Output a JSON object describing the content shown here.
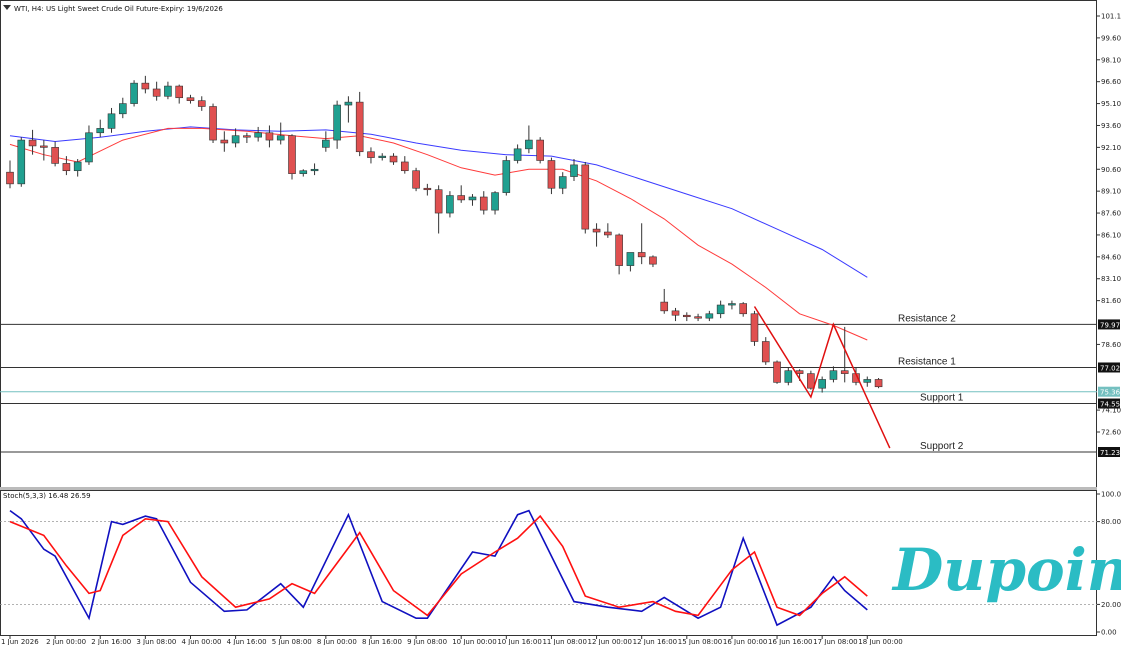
{
  "header": {
    "title": "WTI, H4:  US Light Sweet Crude Oil Future-Expiry: 19/6/2026"
  },
  "logo": {
    "text": "Dupoin",
    "color": "#2bbcc4"
  },
  "colors": {
    "bull": "#20a090",
    "bear": "#e05050",
    "ma_fast": "#ff3b3b",
    "ma_slow": "#3b3bff",
    "stoch_main": "#1010c0",
    "stoch_signal": "#ff1010",
    "projection": "#e01010",
    "last_price": "#74c0c0"
  },
  "chart_data": [
    {
      "type": "candlestick",
      "ylim": [
        70.5,
        102.5
      ],
      "y_ticks": [
        "101.10",
        "99.60",
        "98.10",
        "96.60",
        "95.10",
        "93.60",
        "92.10",
        "90.60",
        "89.10",
        "87.60",
        "86.10",
        "84.60",
        "83.10",
        "81.60",
        "78.60",
        "74.10",
        "72.60"
      ],
      "x_ticks": [
        {
          "i": 0,
          "label": "1 Jun 2026"
        },
        {
          "i": 4,
          "label": "2 Jun 00:00"
        },
        {
          "i": 8,
          "label": "2 Jun 16:00"
        },
        {
          "i": 12,
          "label": "3 Jun 08:00"
        },
        {
          "i": 16,
          "label": "4 Jun 00:00"
        },
        {
          "i": 20,
          "label": "4 Jun 16:00"
        },
        {
          "i": 24,
          "label": "5 Jun 08:00"
        },
        {
          "i": 28,
          "label": "8 Jun 00:00"
        },
        {
          "i": 32,
          "label": "8 Jun 16:00"
        },
        {
          "i": 36,
          "label": "9 Jun 08:00"
        },
        {
          "i": 40,
          "label": "10 Jun 00:00"
        },
        {
          "i": 44,
          "label": "10 Jun 16:00"
        },
        {
          "i": 48,
          "label": "11 Jun 08:00"
        },
        {
          "i": 52,
          "label": "12 Jun 00:00"
        },
        {
          "i": 56,
          "label": "12 Jun 16:00"
        },
        {
          "i": 60,
          "label": "15 Jun 08:00"
        },
        {
          "i": 64,
          "label": "16 Jun 00:00"
        },
        {
          "i": 68,
          "label": "16 Jun 16:00"
        },
        {
          "i": 72,
          "label": "17 Jun 08:00"
        },
        {
          "i": 76,
          "label": "18 Jun 00:00"
        }
      ],
      "candles": [
        {
          "o": 90.4,
          "h": 91.2,
          "l": 89.3,
          "c": 89.6
        },
        {
          "o": 89.6,
          "h": 92.8,
          "l": 89.4,
          "c": 92.6
        },
        {
          "o": 92.6,
          "h": 93.3,
          "l": 91.6,
          "c": 92.2
        },
        {
          "o": 92.2,
          "h": 92.6,
          "l": 91.2,
          "c": 92.1
        },
        {
          "o": 92.1,
          "h": 92.5,
          "l": 90.8,
          "c": 91.0
        },
        {
          "o": 91.0,
          "h": 91.5,
          "l": 90.2,
          "c": 90.5
        },
        {
          "o": 90.5,
          "h": 91.3,
          "l": 90.1,
          "c": 91.1
        },
        {
          "o": 91.1,
          "h": 93.6,
          "l": 90.9,
          "c": 93.1
        },
        {
          "o": 93.1,
          "h": 94.0,
          "l": 92.8,
          "c": 93.4
        },
        {
          "o": 93.4,
          "h": 94.8,
          "l": 93.1,
          "c": 94.4
        },
        {
          "o": 94.4,
          "h": 95.5,
          "l": 94.1,
          "c": 95.1
        },
        {
          "o": 95.1,
          "h": 96.7,
          "l": 94.9,
          "c": 96.5
        },
        {
          "o": 96.5,
          "h": 97.0,
          "l": 95.8,
          "c": 96.1
        },
        {
          "o": 96.1,
          "h": 96.6,
          "l": 95.3,
          "c": 95.6
        },
        {
          "o": 95.6,
          "h": 96.6,
          "l": 95.4,
          "c": 96.3
        },
        {
          "o": 96.3,
          "h": 96.4,
          "l": 95.1,
          "c": 95.5
        },
        {
          "o": 95.5,
          "h": 95.7,
          "l": 95.1,
          "c": 95.3
        },
        {
          "o": 95.3,
          "h": 95.6,
          "l": 94.6,
          "c": 94.9
        },
        {
          "o": 94.9,
          "h": 95.1,
          "l": 92.4,
          "c": 92.6
        },
        {
          "o": 92.6,
          "h": 93.2,
          "l": 91.8,
          "c": 92.4
        },
        {
          "o": 92.4,
          "h": 93.4,
          "l": 92.1,
          "c": 92.9
        },
        {
          "o": 92.9,
          "h": 93.1,
          "l": 92.4,
          "c": 92.8
        },
        {
          "o": 92.8,
          "h": 93.5,
          "l": 92.5,
          "c": 93.1
        },
        {
          "o": 93.1,
          "h": 93.6,
          "l": 92.1,
          "c": 92.6
        },
        {
          "o": 92.6,
          "h": 93.8,
          "l": 92.3,
          "c": 92.9
        },
        {
          "o": 92.9,
          "h": 93.0,
          "l": 89.9,
          "c": 90.3
        },
        {
          "o": 90.3,
          "h": 90.6,
          "l": 90.1,
          "c": 90.5
        },
        {
          "o": 90.5,
          "h": 91.0,
          "l": 90.2,
          "c": 90.6
        },
        {
          "o": 92.1,
          "h": 93.2,
          "l": 91.8,
          "c": 92.6
        },
        {
          "o": 92.6,
          "h": 95.3,
          "l": 92.0,
          "c": 95.0
        },
        {
          "o": 95.0,
          "h": 95.6,
          "l": 93.8,
          "c": 95.2
        },
        {
          "o": 95.2,
          "h": 95.9,
          "l": 91.5,
          "c": 91.8
        },
        {
          "o": 91.8,
          "h": 92.1,
          "l": 91.0,
          "c": 91.4
        },
        {
          "o": 91.4,
          "h": 91.7,
          "l": 91.2,
          "c": 91.5
        },
        {
          "o": 91.5,
          "h": 91.7,
          "l": 90.9,
          "c": 91.1
        },
        {
          "o": 91.1,
          "h": 91.5,
          "l": 90.3,
          "c": 90.5
        },
        {
          "o": 90.5,
          "h": 90.7,
          "l": 89.1,
          "c": 89.3
        },
        {
          "o": 89.3,
          "h": 89.6,
          "l": 88.8,
          "c": 89.2
        },
        {
          "o": 89.2,
          "h": 89.5,
          "l": 86.2,
          "c": 87.6
        },
        {
          "o": 87.6,
          "h": 89.1,
          "l": 87.3,
          "c": 88.8
        },
        {
          "o": 88.8,
          "h": 89.5,
          "l": 88.3,
          "c": 88.5
        },
        {
          "o": 88.5,
          "h": 88.9,
          "l": 88.1,
          "c": 88.7
        },
        {
          "o": 88.7,
          "h": 89.1,
          "l": 87.5,
          "c": 87.8
        },
        {
          "o": 87.8,
          "h": 89.1,
          "l": 87.5,
          "c": 89.0
        },
        {
          "o": 89.0,
          "h": 91.5,
          "l": 88.8,
          "c": 91.2
        },
        {
          "o": 91.2,
          "h": 92.3,
          "l": 91.0,
          "c": 92.0
        },
        {
          "o": 92.0,
          "h": 93.6,
          "l": 91.7,
          "c": 92.6
        },
        {
          "o": 92.6,
          "h": 92.8,
          "l": 91.0,
          "c": 91.2
        },
        {
          "o": 91.2,
          "h": 91.4,
          "l": 88.9,
          "c": 89.3
        },
        {
          "o": 89.3,
          "h": 90.4,
          "l": 88.9,
          "c": 90.1
        },
        {
          "o": 90.1,
          "h": 91.3,
          "l": 89.8,
          "c": 90.9
        },
        {
          "o": 90.9,
          "h": 91.1,
          "l": 86.2,
          "c": 86.5
        },
        {
          "o": 86.5,
          "h": 86.9,
          "l": 85.3,
          "c": 86.3
        },
        {
          "o": 86.3,
          "h": 86.9,
          "l": 85.9,
          "c": 86.1
        },
        {
          "o": 86.1,
          "h": 86.2,
          "l": 83.4,
          "c": 84.0
        },
        {
          "o": 84.0,
          "h": 84.9,
          "l": 83.6,
          "c": 84.9
        },
        {
          "o": 84.9,
          "h": 86.9,
          "l": 84.1,
          "c": 84.6
        },
        {
          "o": 84.6,
          "h": 84.7,
          "l": 83.9,
          "c": 84.1
        },
        {
          "o": 81.5,
          "h": 82.4,
          "l": 80.7,
          "c": 80.9
        },
        {
          "o": 80.9,
          "h": 81.1,
          "l": 80.2,
          "c": 80.6
        },
        {
          "o": 80.6,
          "h": 80.8,
          "l": 80.2,
          "c": 80.5
        },
        {
          "o": 80.5,
          "h": 80.7,
          "l": 80.2,
          "c": 80.4
        },
        {
          "o": 80.4,
          "h": 80.9,
          "l": 80.2,
          "c": 80.7
        },
        {
          "o": 80.7,
          "h": 81.6,
          "l": 80.4,
          "c": 81.3
        },
        {
          "o": 81.3,
          "h": 81.6,
          "l": 81.0,
          "c": 81.4
        },
        {
          "o": 81.4,
          "h": 81.5,
          "l": 80.5,
          "c": 80.7
        },
        {
          "o": 80.7,
          "h": 80.9,
          "l": 78.5,
          "c": 78.8
        },
        {
          "o": 78.8,
          "h": 79.1,
          "l": 77.2,
          "c": 77.4
        },
        {
          "o": 77.4,
          "h": 77.5,
          "l": 75.9,
          "c": 76.0
        },
        {
          "o": 76.0,
          "h": 77.0,
          "l": 75.8,
          "c": 76.8
        },
        {
          "o": 76.8,
          "h": 76.9,
          "l": 76.1,
          "c": 76.6
        },
        {
          "o": 76.6,
          "h": 76.8,
          "l": 75.5,
          "c": 75.6
        },
        {
          "o": 75.6,
          "h": 76.4,
          "l": 75.3,
          "c": 76.2
        },
        {
          "o": 76.2,
          "h": 77.1,
          "l": 76.0,
          "c": 76.8
        },
        {
          "o": 76.8,
          "h": 79.8,
          "l": 76.0,
          "c": 76.6
        },
        {
          "o": 76.6,
          "h": 77.0,
          "l": 75.8,
          "c": 76.0
        },
        {
          "o": 76.0,
          "h": 76.4,
          "l": 75.7,
          "c": 76.2
        },
        {
          "o": 76.2,
          "h": 76.3,
          "l": 75.6,
          "c": 75.7
        }
      ],
      "ma_fast": [
        {
          "i": 0,
          "v": 92.3
        },
        {
          "i": 3,
          "v": 91.6
        },
        {
          "i": 6,
          "v": 91.1
        },
        {
          "i": 10,
          "v": 92.6
        },
        {
          "i": 14,
          "v": 93.4
        },
        {
          "i": 17,
          "v": 93.4
        },
        {
          "i": 21,
          "v": 93.2
        },
        {
          "i": 25,
          "v": 92.9
        },
        {
          "i": 28,
          "v": 92.7
        },
        {
          "i": 31,
          "v": 92.9
        },
        {
          "i": 34,
          "v": 92.4
        },
        {
          "i": 37,
          "v": 91.6
        },
        {
          "i": 40,
          "v": 90.7
        },
        {
          "i": 43,
          "v": 90.2
        },
        {
          "i": 46,
          "v": 90.6
        },
        {
          "i": 49,
          "v": 90.6
        },
        {
          "i": 52,
          "v": 89.8
        },
        {
          "i": 55,
          "v": 88.6
        },
        {
          "i": 58,
          "v": 87.2
        },
        {
          "i": 61,
          "v": 85.4
        },
        {
          "i": 64,
          "v": 84.1
        },
        {
          "i": 67,
          "v": 82.5
        },
        {
          "i": 70,
          "v": 80.7
        },
        {
          "i": 73,
          "v": 79.9
        },
        {
          "i": 76,
          "v": 78.9
        }
      ],
      "ma_slow": [
        {
          "i": 0,
          "v": 92.9
        },
        {
          "i": 4,
          "v": 92.5
        },
        {
          "i": 8,
          "v": 92.8
        },
        {
          "i": 12,
          "v": 93.2
        },
        {
          "i": 16,
          "v": 93.5
        },
        {
          "i": 20,
          "v": 93.3
        },
        {
          "i": 24,
          "v": 93.2
        },
        {
          "i": 28,
          "v": 93.3
        },
        {
          "i": 32,
          "v": 93.0
        },
        {
          "i": 36,
          "v": 92.4
        },
        {
          "i": 40,
          "v": 91.9
        },
        {
          "i": 44,
          "v": 91.6
        },
        {
          "i": 48,
          "v": 91.5
        },
        {
          "i": 52,
          "v": 90.9
        },
        {
          "i": 56,
          "v": 89.9
        },
        {
          "i": 60,
          "v": 88.9
        },
        {
          "i": 64,
          "v": 87.9
        },
        {
          "i": 68,
          "v": 86.5
        },
        {
          "i": 72,
          "v": 85.1
        },
        {
          "i": 76,
          "v": 83.2
        }
      ],
      "levels": [
        {
          "label": "Resistance 2",
          "value": 79.97,
          "tag": "79.97"
        },
        {
          "label": "Resistance 1",
          "value": 77.02,
          "tag": "77.02"
        },
        {
          "label": "Support 1",
          "value": 74.55,
          "tag": "74.55"
        },
        {
          "label": "Support 2",
          "value": 71.23,
          "tag": "71.23"
        }
      ],
      "last_price": {
        "value": 75.36,
        "tag": "75.36"
      },
      "projection": [
        {
          "i": 66,
          "v": 81.2
        },
        {
          "i": 71,
          "v": 75.0
        },
        {
          "i": 73,
          "v": 79.97
        },
        {
          "i": 78,
          "v": 71.5
        }
      ]
    },
    {
      "type": "line",
      "title": "Stoch(5,3,3) 16.48 26.59",
      "ylim": [
        0,
        100
      ],
      "y_ticks": [
        "100.00",
        "80.00",
        "20.00",
        "0.00"
      ],
      "levels": [
        80,
        20
      ],
      "main": [
        {
          "i": 0,
          "v": 88
        },
        {
          "i": 1,
          "v": 82
        },
        {
          "i": 3,
          "v": 60
        },
        {
          "i": 4,
          "v": 55
        },
        {
          "i": 7,
          "v": 10
        },
        {
          "i": 9,
          "v": 80
        },
        {
          "i": 10,
          "v": 78
        },
        {
          "i": 12,
          "v": 84
        },
        {
          "i": 13,
          "v": 82
        },
        {
          "i": 16,
          "v": 36
        },
        {
          "i": 19,
          "v": 15
        },
        {
          "i": 21,
          "v": 16
        },
        {
          "i": 24,
          "v": 35
        },
        {
          "i": 26,
          "v": 18
        },
        {
          "i": 30,
          "v": 85
        },
        {
          "i": 33,
          "v": 22
        },
        {
          "i": 36,
          "v": 10
        },
        {
          "i": 37,
          "v": 10
        },
        {
          "i": 41,
          "v": 58
        },
        {
          "i": 43,
          "v": 55
        },
        {
          "i": 45,
          "v": 85
        },
        {
          "i": 46,
          "v": 88
        },
        {
          "i": 50,
          "v": 22
        },
        {
          "i": 53,
          "v": 18
        },
        {
          "i": 56,
          "v": 15
        },
        {
          "i": 58,
          "v": 25
        },
        {
          "i": 61,
          "v": 10
        },
        {
          "i": 63,
          "v": 18
        },
        {
          "i": 65,
          "v": 68
        },
        {
          "i": 68,
          "v": 5
        },
        {
          "i": 71,
          "v": 18
        },
        {
          "i": 73,
          "v": 40
        },
        {
          "i": 74,
          "v": 30
        },
        {
          "i": 76,
          "v": 16
        }
      ],
      "signal": [
        {
          "i": 0,
          "v": 80
        },
        {
          "i": 3,
          "v": 70
        },
        {
          "i": 5,
          "v": 48
        },
        {
          "i": 7,
          "v": 28
        },
        {
          "i": 8,
          "v": 30
        },
        {
          "i": 10,
          "v": 70
        },
        {
          "i": 12,
          "v": 82
        },
        {
          "i": 14,
          "v": 80
        },
        {
          "i": 17,
          "v": 40
        },
        {
          "i": 20,
          "v": 18
        },
        {
          "i": 23,
          "v": 24
        },
        {
          "i": 25,
          "v": 35
        },
        {
          "i": 27,
          "v": 28
        },
        {
          "i": 31,
          "v": 72
        },
        {
          "i": 34,
          "v": 30
        },
        {
          "i": 37,
          "v": 12
        },
        {
          "i": 40,
          "v": 42
        },
        {
          "i": 43,
          "v": 58
        },
        {
          "i": 45,
          "v": 68
        },
        {
          "i": 47,
          "v": 84
        },
        {
          "i": 49,
          "v": 62
        },
        {
          "i": 51,
          "v": 26
        },
        {
          "i": 54,
          "v": 18
        },
        {
          "i": 57,
          "v": 22
        },
        {
          "i": 59,
          "v": 15
        },
        {
          "i": 61,
          "v": 12
        },
        {
          "i": 64,
          "v": 45
        },
        {
          "i": 66,
          "v": 58
        },
        {
          "i": 68,
          "v": 18
        },
        {
          "i": 70,
          "v": 12
        },
        {
          "i": 72,
          "v": 28
        },
        {
          "i": 74,
          "v": 40
        },
        {
          "i": 76,
          "v": 26
        }
      ]
    }
  ]
}
